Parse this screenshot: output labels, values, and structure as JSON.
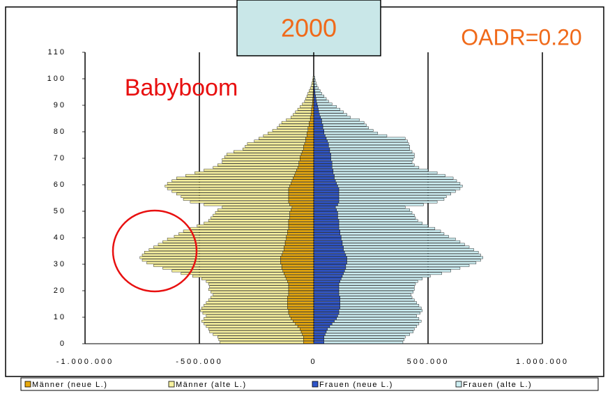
{
  "chart_data": {
    "type": "pyramid",
    "title": "2000",
    "annotations": [
      "OADR=0.20",
      "Babyboom"
    ],
    "ages": [
      0,
      1,
      2,
      3,
      4,
      5,
      6,
      7,
      8,
      9,
      10,
      11,
      12,
      13,
      14,
      15,
      16,
      17,
      18,
      19,
      20,
      21,
      22,
      23,
      24,
      25,
      26,
      27,
      28,
      29,
      30,
      31,
      32,
      33,
      34,
      35,
      36,
      37,
      38,
      39,
      40,
      41,
      42,
      43,
      44,
      45,
      46,
      47,
      48,
      49,
      50,
      51,
      52,
      53,
      54,
      55,
      56,
      57,
      58,
      59,
      60,
      61,
      62,
      63,
      64,
      65,
      66,
      67,
      68,
      69,
      70,
      71,
      72,
      73,
      74,
      75,
      76,
      77,
      78,
      79,
      80,
      81,
      82,
      83,
      84,
      85,
      86,
      87,
      88,
      89,
      90,
      91,
      92,
      93,
      94,
      95,
      96,
      97,
      98,
      99,
      100
    ],
    "series": [
      {
        "name": "Männer (neue L.)",
        "color": "#e8a90e",
        "values": [
          -45000,
          -45000,
          -45000,
          -50000,
          -55000,
          -60000,
          -70000,
          -80000,
          -90000,
          -100000,
          -105000,
          -110000,
          -110000,
          -115000,
          -115000,
          -115000,
          -115000,
          -115000,
          -110000,
          -110000,
          -110000,
          -110000,
          -110000,
          -115000,
          -120000,
          -125000,
          -130000,
          -135000,
          -140000,
          -140000,
          -145000,
          -145000,
          -145000,
          -140000,
          -135000,
          -130000,
          -130000,
          -125000,
          -125000,
          -120000,
          -120000,
          -115000,
          -115000,
          -110000,
          -110000,
          -110000,
          -110000,
          -105000,
          -105000,
          -105000,
          -100000,
          -95000,
          -105000,
          -110000,
          -110000,
          -110000,
          -110000,
          -110000,
          -110000,
          -105000,
          -100000,
          -95000,
          -90000,
          -85000,
          -80000,
          -75000,
          -70000,
          -65000,
          -65000,
          -60000,
          -60000,
          -55000,
          -50000,
          -45000,
          -45000,
          -40000,
          -35000,
          -35000,
          -30000,
          -30000,
          -25000,
          -25000,
          -20000,
          -20000,
          -15000,
          -15000,
          -12000,
          -10000,
          -10000,
          -8000,
          -6000,
          -5000,
          -4000,
          -3000,
          -3000,
          -2000,
          -2000,
          -1000,
          -1000,
          -1000,
          0
        ]
      },
      {
        "name": "Männer (alte L.)",
        "color": "#f8f2a0",
        "values": [
          -365000,
          -370000,
          -375000,
          -390000,
          -400000,
          -400000,
          -400000,
          -400000,
          -400000,
          -380000,
          -365000,
          -375000,
          -385000,
          -375000,
          -365000,
          -355000,
          -345000,
          -335000,
          -330000,
          -340000,
          -350000,
          -345000,
          -350000,
          -355000,
          -370000,
          -405000,
          -450000,
          -485000,
          -520000,
          -560000,
          -585000,
          -605000,
          -615000,
          -610000,
          -605000,
          -590000,
          -570000,
          -555000,
          -535000,
          -520000,
          -490000,
          -475000,
          -455000,
          -430000,
          -400000,
          -370000,
          -350000,
          -345000,
          -335000,
          -325000,
          -320000,
          -305000,
          -375000,
          -430000,
          -460000,
          -470000,
          -490000,
          -510000,
          -530000,
          -545000,
          -540000,
          -525000,
          -510000,
          -475000,
          -440000,
          -405000,
          -370000,
          -355000,
          -335000,
          -340000,
          -330000,
          -325000,
          -300000,
          -265000,
          -255000,
          -250000,
          -225000,
          -205000,
          -190000,
          -170000,
          -155000,
          -135000,
          -130000,
          -120000,
          -105000,
          -85000,
          -78000,
          -70000,
          -60000,
          -52000,
          -44000,
          -35000,
          -31000,
          -27000,
          -22000,
          -18000,
          -13000,
          -9000,
          -7000,
          -4000,
          -3000
        ]
      },
      {
        "name": "Frauen (neue L.)",
        "color": "#2f55c8",
        "values": [
          45000,
          45000,
          45000,
          50000,
          55000,
          60000,
          70000,
          80000,
          90000,
          100000,
          105000,
          110000,
          110000,
          115000,
          115000,
          115000,
          115000,
          115000,
          110000,
          110000,
          110000,
          110000,
          110000,
          115000,
          120000,
          125000,
          130000,
          135000,
          140000,
          140000,
          145000,
          145000,
          145000,
          140000,
          135000,
          130000,
          130000,
          125000,
          125000,
          120000,
          120000,
          115000,
          115000,
          110000,
          110000,
          110000,
          110000,
          105000,
          105000,
          105000,
          100000,
          95000,
          105000,
          110000,
          110000,
          110000,
          110000,
          110000,
          110000,
          105000,
          100000,
          95000,
          90000,
          90000,
          85000,
          85000,
          80000,
          80000,
          80000,
          75000,
          75000,
          75000,
          70000,
          70000,
          65000,
          65000,
          60000,
          55000,
          50000,
          45000,
          45000,
          40000,
          40000,
          35000,
          35000,
          30000,
          25000,
          22000,
          20000,
          18000,
          15000,
          12000,
          10000,
          8000,
          6000,
          5000,
          4000,
          3000,
          2000,
          2000,
          1000
        ]
      },
      {
        "name": "Frauen (alte L.)",
        "color": "#cdeef2",
        "values": [
          345000,
          350000,
          355000,
          370000,
          380000,
          380000,
          380000,
          380000,
          380000,
          360000,
          345000,
          355000,
          365000,
          355000,
          345000,
          335000,
          325000,
          315000,
          315000,
          325000,
          330000,
          330000,
          335000,
          340000,
          355000,
          385000,
          430000,
          465000,
          500000,
          540000,
          565000,
          585000,
          595000,
          590000,
          585000,
          570000,
          550000,
          535000,
          515000,
          500000,
          470000,
          455000,
          440000,
          420000,
          390000,
          365000,
          345000,
          340000,
          335000,
          325000,
          320000,
          305000,
          375000,
          430000,
          460000,
          470000,
          490000,
          510000,
          530000,
          545000,
          540000,
          530000,
          520000,
          485000,
          455000,
          415000,
          380000,
          360000,
          350000,
          360000,
          365000,
          365000,
          360000,
          350000,
          355000,
          350000,
          350000,
          345000,
          270000,
          235000,
          215000,
          200000,
          190000,
          185000,
          165000,
          130000,
          120000,
          108000,
          95000,
          82000,
          65000,
          53000,
          45000,
          37000,
          29000,
          23000,
          16000,
          11000,
          8000,
          5000,
          4000
        ]
      }
    ],
    "xlim": [
      -1000000,
      1000000
    ],
    "xticks": [
      {
        "value": -1000000,
        "label": "-1.000.000"
      },
      {
        "value": -500000,
        "label": "-500.000"
      },
      0,
      {
        "value": 500000,
        "label": "500.000"
      },
      {
        "value": 1000000,
        "label": "1.000.000"
      }
    ],
    "ylim": [
      0,
      110
    ],
    "yticks": [
      0,
      10,
      20,
      30,
      40,
      50,
      60,
      70,
      80,
      90,
      100,
      110
    ],
    "grid": true,
    "legend": "bottom"
  }
}
